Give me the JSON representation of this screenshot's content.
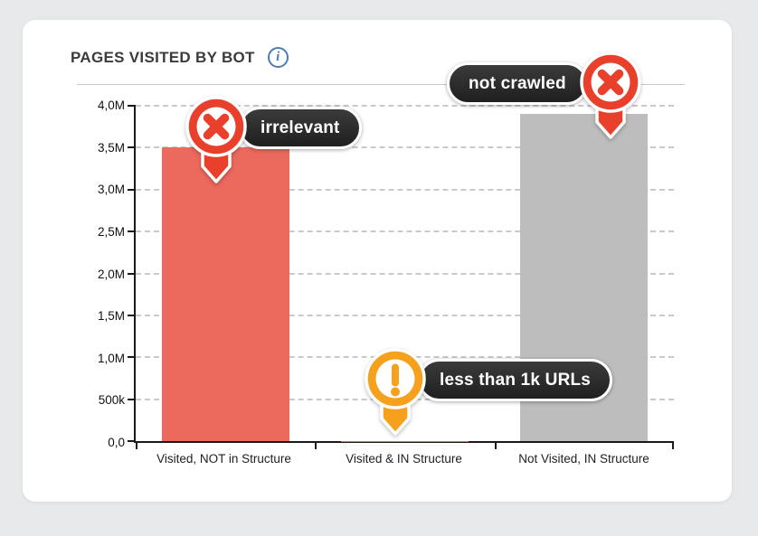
{
  "page": {
    "background": "#e8e9ea"
  },
  "card": {
    "title": "PAGES VISITED BY BOT",
    "info_icon_glyph": "i"
  },
  "chart_data": {
    "type": "bar",
    "title": "PAGES VISITED BY BOT",
    "categories": [
      "Visited, NOT in Structure",
      "Visited & IN Structure",
      "Not Visited, IN Structure"
    ],
    "values": [
      3500000,
      1000,
      3900000
    ],
    "bar_colors": [
      "#ec695e",
      "#ec695e",
      "#bdbdbd"
    ],
    "xlabel": "",
    "ylabel": "",
    "ylim": [
      0,
      4000000
    ],
    "yticks": [
      {
        "value": 0,
        "label": "0,0"
      },
      {
        "value": 500000,
        "label": "500k"
      },
      {
        "value": 1000000,
        "label": "1,0M"
      },
      {
        "value": 1500000,
        "label": "1,5M"
      },
      {
        "value": 2000000,
        "label": "2,0M"
      },
      {
        "value": 2500000,
        "label": "2,5M"
      },
      {
        "value": 3000000,
        "label": "3,0M"
      },
      {
        "value": 3500000,
        "label": "3,5M"
      },
      {
        "value": 4000000,
        "label": "4,0M"
      }
    ],
    "grid": "horizontal-dashed",
    "legend": "none",
    "annotations": [
      {
        "text": "irrelevant",
        "icon": "x-circle-pin",
        "color": "#e8402b",
        "target": "Visited, NOT in Structure"
      },
      {
        "text": "less than 1k URLs",
        "icon": "warning-pin",
        "color": "#f5a11d",
        "target": "Visited & IN Structure"
      },
      {
        "text": "not crawled",
        "icon": "x-circle-pin",
        "color": "#e8402b",
        "target": "Not Visited, IN Structure"
      }
    ]
  }
}
